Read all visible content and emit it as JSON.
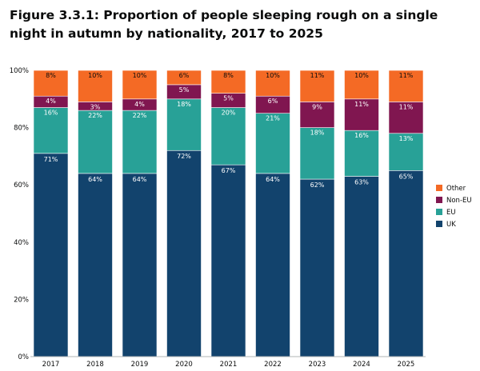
{
  "title": "Figure 3.3.1: Proportion of people sleeping rough on a single night in autumn by nationality, 2017 to 2025",
  "chart_data": {
    "type": "bar",
    "stacked": true,
    "categories": [
      "2017",
      "2018",
      "2019",
      "2020",
      "2021",
      "2022",
      "2023",
      "2024",
      "2025"
    ],
    "series": [
      {
        "name": "UK",
        "color": "#12436d",
        "values": [
          71,
          64,
          64,
          72,
          67,
          64,
          62,
          63,
          65
        ]
      },
      {
        "name": "EU",
        "color": "#28a197",
        "values": [
          16,
          22,
          22,
          18,
          20,
          21,
          18,
          16,
          13
        ]
      },
      {
        "name": "Non-EU",
        "color": "#801650",
        "values": [
          4,
          3,
          4,
          5,
          5,
          6,
          9,
          11,
          11
        ]
      },
      {
        "name": "Other",
        "color": "#f46a25",
        "values": [
          8,
          10,
          10,
          6,
          8,
          10,
          11,
          10,
          11
        ]
      }
    ],
    "data_labels": [
      "71%",
      "64%",
      "64%",
      "72%",
      "67%",
      "64%",
      "62%",
      "63%",
      "65%",
      "16%",
      "22%",
      "22%",
      "18%",
      "20%",
      "21%",
      "18%",
      "16%",
      "13%",
      "4%",
      "3%",
      "4%",
      "5%",
      "5%",
      "6%",
      "9%",
      "11%",
      "11%",
      "8%",
      "10%",
      "10%",
      "6%",
      "8%",
      "10%",
      "11%",
      "10%",
      "11%"
    ],
    "y_ticks": [
      "0%",
      "20%",
      "40%",
      "60%",
      "80%",
      "100%"
    ],
    "ylim": [
      0,
      100
    ],
    "legend": {
      "position": "right",
      "order": [
        "Other",
        "Non-EU",
        "EU",
        "UK"
      ]
    },
    "grid": false
  }
}
